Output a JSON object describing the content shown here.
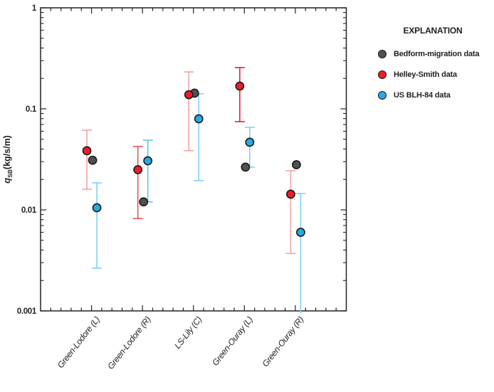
{
  "figure": {
    "background": "#ffffff"
  },
  "legend": {
    "title": "EXPLANATION",
    "items": [
      {
        "label": "Bedform-migration data",
        "color": "#515154"
      },
      {
        "label": "Helley-Smith data",
        "color": "#EC1C2D"
      },
      {
        "label": "US BLH-84 data",
        "color": "#29A9E1"
      }
    ]
  },
  "chart_data": {
    "type": "scatter",
    "title": "",
    "xlabel": "",
    "ylabel": {
      "symbol": "q",
      "subscript": "SB",
      "units": "(kg/s/m)"
    },
    "log_scale_y": true,
    "grid": false,
    "ylim": [
      0.001,
      1
    ],
    "yticks": [
      {
        "v": 1,
        "label": "1"
      },
      {
        "v": 0.1,
        "label": "0.1"
      },
      {
        "v": 0.01,
        "label": "0.01"
      },
      {
        "v": 0.001,
        "label": "0.001"
      }
    ],
    "categories": [
      "Green-Lodore (L)",
      "Green-Lodore (R)",
      "LS-Lily (C)",
      "Green-Ouray (L)",
      "Green-Ouray (R)"
    ],
    "series": [
      {
        "name": "Bedform-migration data",
        "key": "bedform-migration",
        "marker_fill": "#515154",
        "marker_stroke": "#1a1a1a",
        "x_offset": 1.5,
        "values": [
          0.031,
          0.012,
          0.143,
          0.0265,
          0.028
        ]
      },
      {
        "name": "Helley-Smith data",
        "key": "helley-smith",
        "marker_fill": "#EC1C2D",
        "marker_stroke": "#1a1a1a",
        "x_offset": -6.5,
        "values": [
          0.0385,
          0.025,
          0.138,
          0.168,
          0.0143
        ],
        "err_high": [
          0.0615,
          0.0424,
          0.232,
          0.256,
          0.0244
        ],
        "err_low": [
          0.016,
          0.0082,
          0.0385,
          0.0747,
          0.0037
        ],
        "bar_colors": [
          "#F5A2AA",
          "#E4555F",
          "#F5A2AA",
          "#EC1C2D",
          "#F5A2AA"
        ],
        "cap_high": [
          true,
          true,
          true,
          true,
          true
        ],
        "cap_low": [
          true,
          true,
          true,
          true,
          true
        ]
      },
      {
        "name": "US BLH-84 data",
        "key": "us-blh-84",
        "marker_fill": "#29A9E1",
        "marker_stroke": "#1a1a1a",
        "x_offset": 7.5,
        "values": [
          0.0105,
          0.0306,
          0.0797,
          0.0467,
          0.006
        ],
        "err_high": [
          0.0185,
          0.049,
          0.141,
          0.0656,
          0.0145
        ],
        "err_low": [
          0.00265,
          0.012,
          0.0195,
          0.0265,
          0.00095
        ],
        "bar_colors": [
          "#7DD2F4",
          "#5BC6EF",
          "#7DD2F4",
          "#7DD2F4",
          "#7DD2F4"
        ],
        "cap_high": [
          true,
          true,
          true,
          true,
          true
        ],
        "cap_low": [
          true,
          true,
          true,
          true,
          false
        ]
      }
    ],
    "point_draw_order": [
      [
        1,
        0,
        2
      ],
      [
        1,
        0,
        2
      ],
      [
        0,
        1,
        2
      ],
      [
        1,
        0,
        2
      ],
      [
        1,
        0,
        2
      ]
    ],
    "legend_position": "right"
  }
}
